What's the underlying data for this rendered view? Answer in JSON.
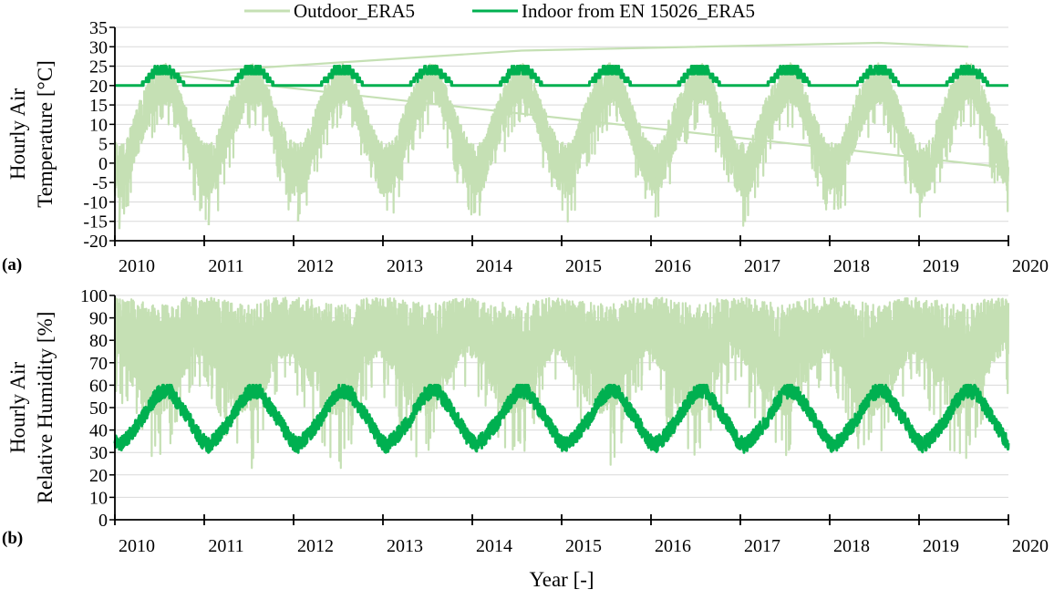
{
  "chart_data": {
    "type": "line",
    "legend": {
      "placement": "top-center",
      "entries": [
        {
          "name": "Outdoor_ERA5",
          "color": "#c5e0b4"
        },
        {
          "name": "Indoor from EN 15026_ERA5",
          "color": "#00b050"
        }
      ]
    },
    "xlabel": "Year [-]",
    "x_ticks": [
      "2010",
      "2011",
      "2012",
      "2013",
      "2014",
      "2015",
      "2016",
      "2017",
      "2018",
      "2019",
      "2020"
    ],
    "xlim": [
      2010,
      2020
    ],
    "panels": [
      {
        "label": "(a)",
        "ylabel_lines": [
          "Hourly Air",
          "Temperature [°C]"
        ],
        "ylim": [
          -20,
          35
        ],
        "ytick_step": 5,
        "grid": true,
        "outdoor_monthly_range": [
          [
            -14,
            5
          ],
          [
            -12,
            6
          ],
          [
            -5,
            12
          ],
          [
            0,
            17
          ],
          [
            5,
            21
          ],
          [
            9,
            24
          ],
          [
            12,
            26
          ],
          [
            11,
            25
          ],
          [
            6,
            20
          ],
          [
            0,
            15
          ],
          [
            -5,
            10
          ],
          [
            -12,
            6
          ]
        ],
        "indoor_monthly_range": [
          [
            20,
            20
          ],
          [
            20,
            20
          ],
          [
            20,
            20
          ],
          [
            20,
            20
          ],
          [
            20,
            23
          ],
          [
            21,
            25
          ],
          [
            22,
            25
          ],
          [
            21,
            25
          ],
          [
            20,
            23
          ],
          [
            20,
            20
          ],
          [
            20,
            20
          ],
          [
            20,
            20
          ]
        ],
        "outdoor_annual_peaks": {
          "2010": 23,
          "2014": 29,
          "2018": 31,
          "2019": 30
        },
        "outdoor_annual_min": {
          "2010": -17,
          "2011": -16,
          "2012": -15,
          "2016": -14,
          "2018": -12
        }
      },
      {
        "label": "(b)",
        "ylabel_lines": [
          "Hourly Air",
          "Relative Humidity [%]"
        ],
        "ylim": [
          0,
          100
        ],
        "ytick_step": 10,
        "grid": true,
        "outdoor_monthly_range": [
          [
            60,
            99
          ],
          [
            55,
            99
          ],
          [
            45,
            98
          ],
          [
            35,
            97
          ],
          [
            30,
            97
          ],
          [
            30,
            96
          ],
          [
            30,
            96
          ],
          [
            35,
            97
          ],
          [
            45,
            98
          ],
          [
            55,
            99
          ],
          [
            62,
            99
          ],
          [
            65,
            99
          ]
        ],
        "indoor_monthly_mean": [
          33,
          36,
          40,
          44,
          50,
          55,
          58,
          57,
          52,
          47,
          42,
          36
        ],
        "indoor_clip": [
          30,
          60
        ]
      }
    ]
  }
}
